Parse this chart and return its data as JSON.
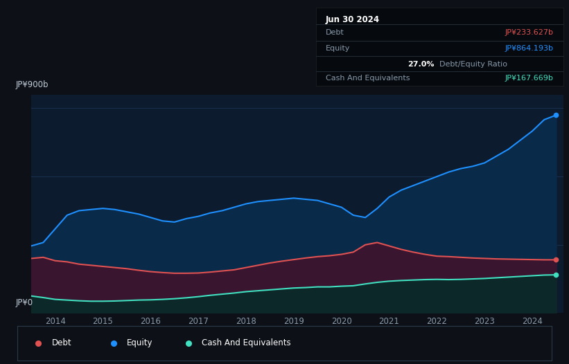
{
  "bg_color": "#0d1117",
  "plot_bg": "#0d1b2e",
  "ylabel_top": "JP¥900b",
  "ylabel_bottom": "JP¥0",
  "x_ticks": [
    "2014",
    "2015",
    "2016",
    "2017",
    "2018",
    "2019",
    "2020",
    "2021",
    "2022",
    "2023",
    "2024"
  ],
  "equity_color": "#1e90ff",
  "equity_fill": "#0a2a4a",
  "debt_color": "#e05252",
  "debt_fill": "#3a1530",
  "cash_color": "#40e0c0",
  "cash_fill": "#0d2828",
  "grid_color": "#1a3050",
  "tooltip": {
    "date": "Jun 30 2024",
    "debt_label": "Debt",
    "debt_value": "JP¥233.627b",
    "equity_label": "Equity",
    "equity_value": "JP¥864.193b",
    "ratio_value": "27.0%",
    "ratio_label": "Debt/Equity Ratio",
    "cash_label": "Cash And Equivalents",
    "cash_value": "JP¥167.669b"
  },
  "years": [
    2013.5,
    2013.75,
    2014.0,
    2014.25,
    2014.5,
    2014.75,
    2015.0,
    2015.25,
    2015.5,
    2015.75,
    2016.0,
    2016.25,
    2016.5,
    2016.75,
    2017.0,
    2017.25,
    2017.5,
    2017.75,
    2018.0,
    2018.25,
    2018.5,
    2018.75,
    2019.0,
    2019.25,
    2019.5,
    2019.75,
    2020.0,
    2020.25,
    2020.5,
    2020.75,
    2021.0,
    2021.25,
    2021.5,
    2021.75,
    2022.0,
    2022.25,
    2022.5,
    2022.75,
    2023.0,
    2023.25,
    2023.5,
    2023.75,
    2024.0,
    2024.25,
    2024.5
  ],
  "equity": [
    295,
    310,
    370,
    430,
    450,
    455,
    460,
    455,
    445,
    435,
    420,
    405,
    400,
    415,
    425,
    440,
    450,
    465,
    480,
    490,
    495,
    500,
    505,
    500,
    495,
    480,
    465,
    430,
    420,
    460,
    510,
    540,
    560,
    580,
    600,
    620,
    635,
    645,
    660,
    690,
    720,
    760,
    800,
    850,
    870
  ],
  "debt": [
    240,
    245,
    230,
    225,
    215,
    210,
    205,
    200,
    195,
    188,
    182,
    178,
    175,
    175,
    176,
    180,
    185,
    190,
    200,
    210,
    220,
    228,
    235,
    242,
    248,
    252,
    258,
    268,
    300,
    310,
    295,
    280,
    268,
    258,
    250,
    248,
    245,
    242,
    240,
    238,
    237,
    236,
    235,
    234,
    234
  ],
  "cash": [
    75,
    68,
    60,
    57,
    54,
    52,
    52,
    53,
    55,
    57,
    58,
    60,
    63,
    67,
    72,
    78,
    83,
    88,
    94,
    98,
    102,
    106,
    110,
    112,
    115,
    115,
    118,
    120,
    128,
    135,
    140,
    143,
    145,
    147,
    148,
    147,
    148,
    150,
    152,
    155,
    158,
    161,
    164,
    167,
    168
  ]
}
